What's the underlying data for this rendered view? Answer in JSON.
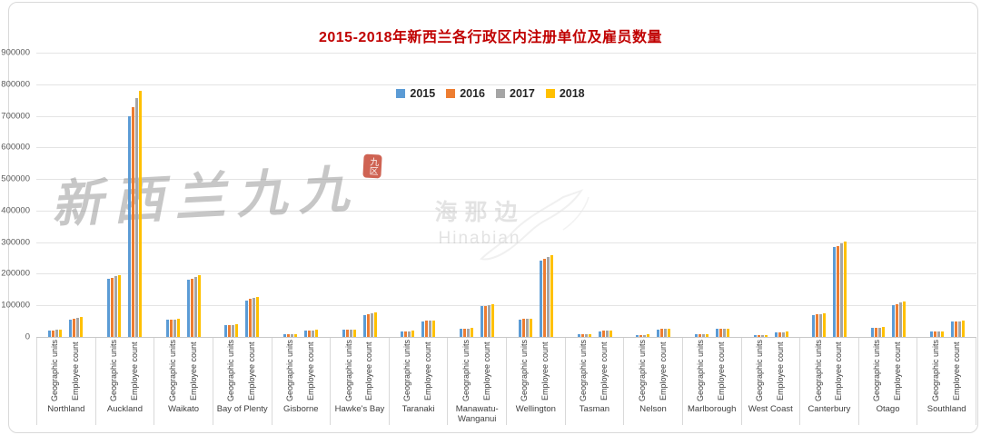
{
  "title": "2015-2018年新西兰各行政区内注册单位及雇员数量",
  "title_color": "#c00000",
  "legend": [
    {
      "label": "2015",
      "color": "#5B9BD5"
    },
    {
      "label": "2016",
      "color": "#ED7D31"
    },
    {
      "label": "2017",
      "color": "#A5A5A5"
    },
    {
      "label": "2018",
      "color": "#FFC000"
    }
  ],
  "watermarks": {
    "main_text": "新西兰九九",
    "seal_text": "九区",
    "center_text": "海那边",
    "center_subtext": "Hinabian"
  },
  "chart_data": {
    "type": "bar",
    "title": "2015-2018年新西兰各行政区内注册单位及雇员数量",
    "xlabel": "",
    "ylabel": "",
    "ylim": [
      0,
      900000
    ],
    "ytick_step": 100000,
    "y_tick_labels": [
      "0",
      "100000",
      "200000",
      "300000",
      "400000",
      "500000",
      "600000",
      "700000",
      "800000",
      "900000"
    ],
    "grid": true,
    "legend_position": "top",
    "series_names": [
      "2015",
      "2016",
      "2017",
      "2018"
    ],
    "series_colors": [
      "#5B9BD5",
      "#ED7D31",
      "#A5A5A5",
      "#FFC000"
    ],
    "subgroups": [
      "Geographic units",
      "Employee count"
    ],
    "regions": [
      {
        "name": "Northland",
        "geographic_units": [
          21000,
          21500,
          22000,
          22500
        ],
        "employee_count": [
          56000,
          58000,
          60000,
          62000
        ]
      },
      {
        "name": "Auckland",
        "geographic_units": [
          185000,
          188000,
          192000,
          196000
        ],
        "employee_count": [
          700000,
          728000,
          755000,
          780000
        ]
      },
      {
        "name": "Waikato",
        "geographic_units": [
          54000,
          55000,
          56000,
          58000
        ],
        "employee_count": [
          180000,
          185000,
          190000,
          196000
        ]
      },
      {
        "name": "Bay of Plenty",
        "geographic_units": [
          36000,
          37000,
          38000,
          39000
        ],
        "employee_count": [
          115000,
          120000,
          124000,
          128000
        ]
      },
      {
        "name": "Gisborne",
        "geographic_units": [
          7500,
          7600,
          7800,
          8000
        ],
        "employee_count": [
          20000,
          21000,
          21500,
          22000
        ]
      },
      {
        "name": "Hawke's Bay",
        "geographic_units": [
          22000,
          22500,
          23000,
          23500
        ],
        "employee_count": [
          70000,
          73000,
          76000,
          79000
        ]
      },
      {
        "name": "Taranaki",
        "geographic_units": [
          18000,
          18200,
          18500,
          19000
        ],
        "employee_count": [
          50000,
          51000,
          52000,
          53000
        ]
      },
      {
        "name": "Manawatu-Wanganui",
        "geographic_units": [
          26000,
          26500,
          27000,
          27500
        ],
        "employee_count": [
          97000,
          99000,
          100000,
          103000
        ]
      },
      {
        "name": "Wellington",
        "geographic_units": [
          56000,
          56500,
          57500,
          58500
        ],
        "employee_count": [
          242000,
          247000,
          252000,
          258000
        ]
      },
      {
        "name": "Tasman",
        "geographic_units": [
          8000,
          8100,
          8300,
          8500
        ],
        "employee_count": [
          18000,
          19000,
          20000,
          21000
        ]
      },
      {
        "name": "Nelson",
        "geographic_units": [
          7000,
          7100,
          7200,
          7400
        ],
        "employee_count": [
          24000,
          25000,
          25500,
          26000
        ]
      },
      {
        "name": "Marlborough",
        "geographic_units": [
          9000,
          9100,
          9300,
          9500
        ],
        "employee_count": [
          25000,
          25500,
          26000,
          27000
        ]
      },
      {
        "name": "West Coast",
        "geographic_units": [
          6000,
          6000,
          6100,
          6300
        ],
        "employee_count": [
          15000,
          15200,
          15500,
          16000
        ]
      },
      {
        "name": "Canterbury",
        "geographic_units": [
          70000,
          71000,
          72500,
          74000
        ],
        "employee_count": [
          285000,
          289000,
          295000,
          302000
        ]
      },
      {
        "name": "Otago",
        "geographic_units": [
          28000,
          28500,
          29500,
          30500
        ],
        "employee_count": [
          100000,
          104000,
          108000,
          112000
        ]
      },
      {
        "name": "Southland",
        "geographic_units": [
          16000,
          16200,
          16500,
          17000
        ],
        "employee_count": [
          48000,
          49000,
          50000,
          52000
        ]
      }
    ]
  }
}
